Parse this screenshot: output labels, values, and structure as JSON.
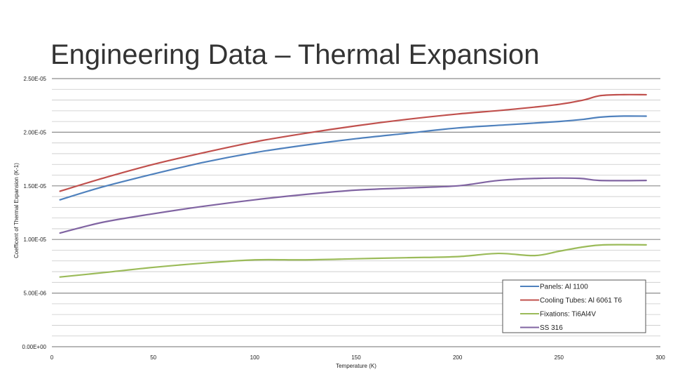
{
  "slide": {
    "title": "Engineering Data – Thermal Expansion"
  },
  "chart_data": {
    "type": "line",
    "title": "",
    "xlabel": "Temperature (K)",
    "ylabel": "Coefficent of Thermal Expansion (K-1)",
    "xlim": [
      0,
      300
    ],
    "ylim": [
      0,
      2.5e-05
    ],
    "x_ticks": [
      0,
      50,
      100,
      150,
      200,
      250,
      300
    ],
    "x_tick_labels": [
      "0",
      "50",
      "100",
      "150",
      "200",
      "250",
      "300"
    ],
    "y_ticks": [
      0,
      5e-06,
      1e-05,
      1.5e-05,
      2e-05,
      2.5e-05
    ],
    "y_tick_labels": [
      "0.00E+00",
      "5.00E-06",
      "1.00E-05",
      "1.50E-05",
      "2.00E-05",
      "2.50E-05"
    ],
    "grid": true,
    "legend_position": "bottom-right",
    "series": [
      {
        "name": "Panels: Al 1100",
        "color": "#4f81bd",
        "x": [
          4,
          25,
          50,
          75,
          100,
          125,
          150,
          175,
          200,
          225,
          250,
          262,
          270,
          280,
          293
        ],
        "y": [
          1.37e-05,
          1.49e-05,
          1.61e-05,
          1.72e-05,
          1.81e-05,
          1.88e-05,
          1.94e-05,
          1.99e-05,
          2.04e-05,
          2.07e-05,
          2.1e-05,
          2.12e-05,
          2.14e-05,
          2.15e-05,
          2.15e-05
        ]
      },
      {
        "name": "Cooling Tubes: Al 6061 T6",
        "color": "#c0504d",
        "x": [
          4,
          25,
          50,
          75,
          100,
          125,
          150,
          175,
          200,
          225,
          250,
          262,
          270,
          280,
          293
        ],
        "y": [
          1.45e-05,
          1.57e-05,
          1.7e-05,
          1.81e-05,
          1.91e-05,
          1.99e-05,
          2.06e-05,
          2.12e-05,
          2.17e-05,
          2.21e-05,
          2.26e-05,
          2.3e-05,
          2.34e-05,
          2.35e-05,
          2.35e-05
        ]
      },
      {
        "name": "Fixations: Ti6Al4V",
        "color": "#9bbb59",
        "x": [
          4,
          25,
          50,
          75,
          100,
          125,
          150,
          175,
          200,
          220,
          238,
          250,
          262,
          272,
          293
        ],
        "y": [
          6.5e-06,
          6.9e-06,
          7.4e-06,
          7.8e-06,
          8.1e-06,
          8.1e-06,
          8.2e-06,
          8.3e-06,
          8.4e-06,
          8.7e-06,
          8.5e-06,
          8.9e-06,
          9.3e-06,
          9.5e-06,
          9.5e-06
        ]
      },
      {
        "name": "SS 316",
        "color": "#8064a2",
        "x": [
          4,
          25,
          50,
          75,
          100,
          125,
          150,
          175,
          200,
          220,
          240,
          260,
          270,
          293
        ],
        "y": [
          1.06e-05,
          1.16e-05,
          1.24e-05,
          1.31e-05,
          1.37e-05,
          1.42e-05,
          1.46e-05,
          1.48e-05,
          1.5e-05,
          1.55e-05,
          1.57e-05,
          1.57e-05,
          1.55e-05,
          1.55e-05
        ]
      }
    ]
  }
}
